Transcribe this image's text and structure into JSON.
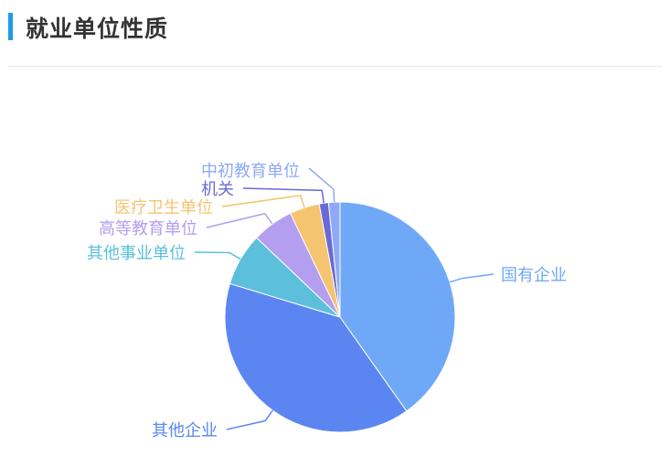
{
  "header": {
    "title": "就业单位性质"
  },
  "chart_data": {
    "type": "pie",
    "title": "",
    "start": "top",
    "direction": "clockwise",
    "slices": [
      {
        "name": "国有企业",
        "value": 40.2,
        "color": "#6fa8f7"
      },
      {
        "name": "其他企业",
        "value": 39.5,
        "color": "#5b86f2"
      },
      {
        "name": "其他事业单位",
        "value": 7.4,
        "color": "#5cbfdc"
      },
      {
        "name": "高等教育单位",
        "value": 5.8,
        "color": "#b39ef0"
      },
      {
        "name": "医疗卫生单位",
        "value": 4.2,
        "color": "#f5c470"
      },
      {
        "name": "机关",
        "value": 1.3,
        "color": "#6a6ad6"
      },
      {
        "name": "中初教育单位",
        "value": 1.6,
        "color": "#8fa9f7"
      }
    ]
  }
}
